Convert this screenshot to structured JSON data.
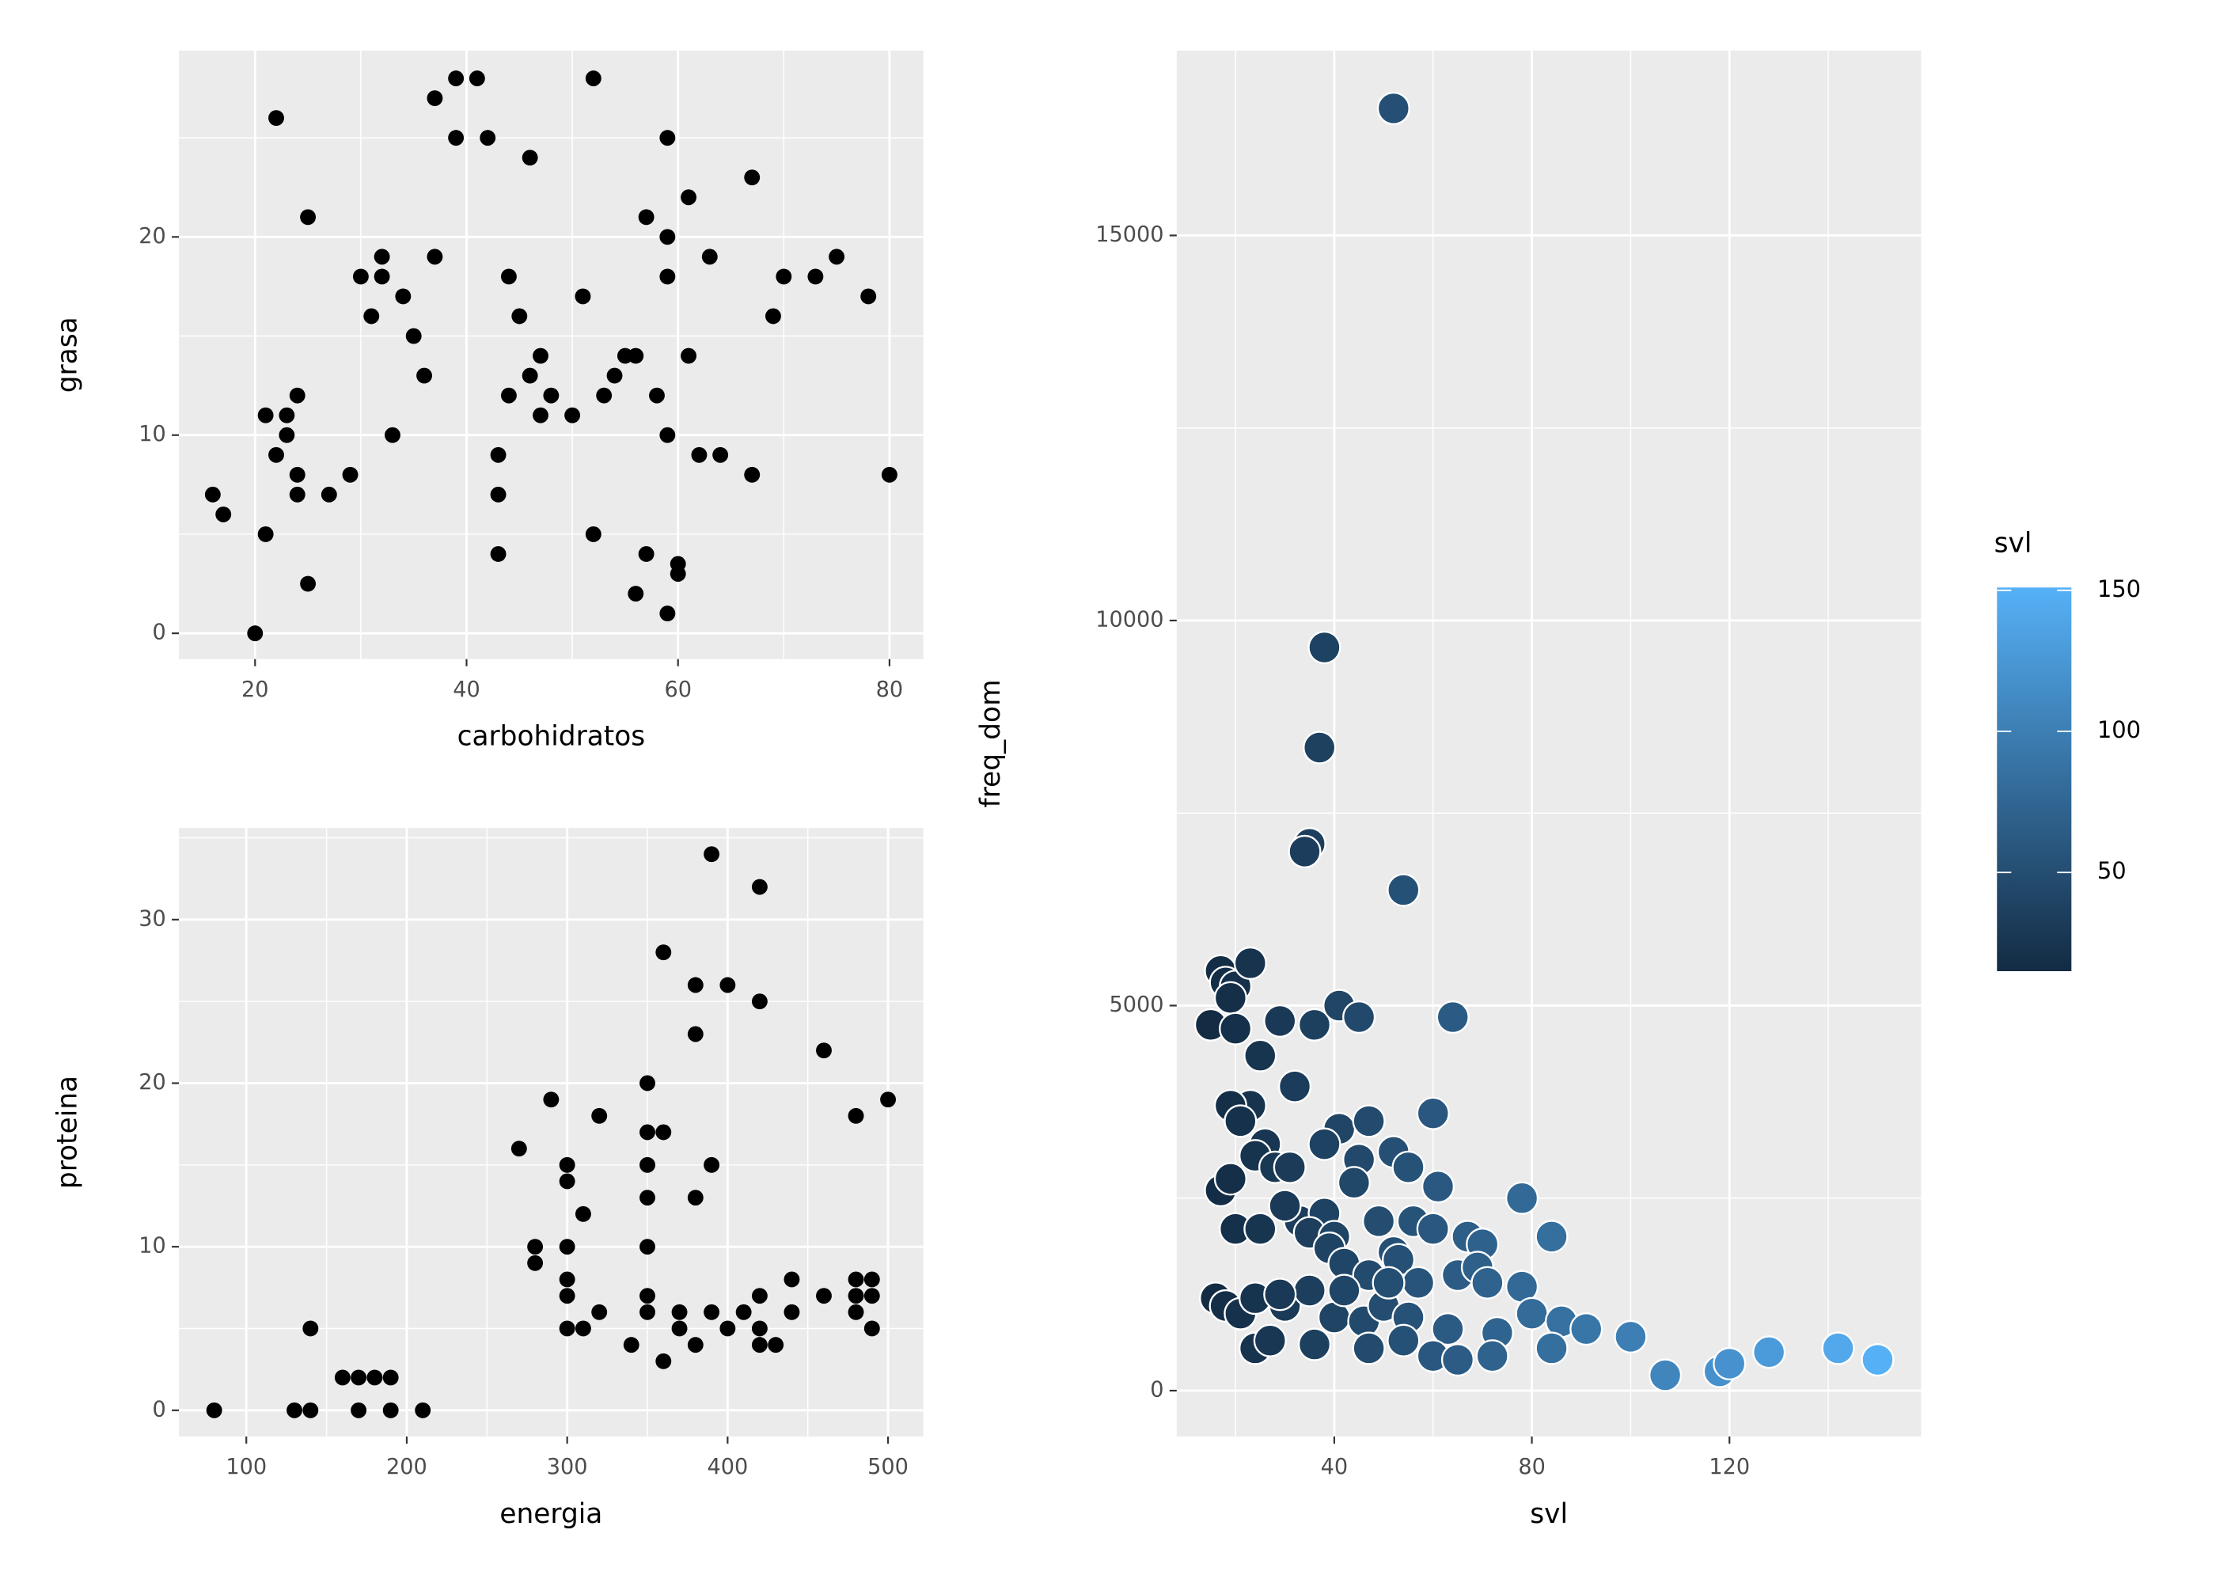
{
  "chart_data": [
    {
      "type": "scatter",
      "x_label": "carbohidratos",
      "y_label": "grasa",
      "color": "#000000",
      "xlim": [
        12.8,
        83.2
      ],
      "ylim": [
        -1.3,
        29.4
      ],
      "xticks": [
        20,
        40,
        60,
        80
      ],
      "yticks": [
        0,
        10,
        20
      ],
      "x": [
        16,
        17,
        20,
        21,
        21,
        22,
        22,
        23,
        23,
        24,
        24,
        24,
        25,
        25,
        27,
        29,
        30,
        31,
        32,
        32,
        33,
        34,
        35,
        36,
        37,
        37,
        39,
        39,
        41,
        42,
        43,
        43,
        43,
        44,
        44,
        45,
        46,
        46,
        47,
        47,
        48,
        50,
        51,
        52,
        52,
        53,
        54,
        55,
        56,
        56,
        57,
        57,
        58,
        59,
        59,
        59,
        59,
        59,
        60,
        60,
        61,
        61,
        62,
        63,
        64,
        67,
        67,
        69,
        70,
        73,
        75,
        78,
        80
      ],
      "y": [
        7,
        6,
        0,
        11,
        5,
        26,
        9,
        11,
        10,
        12,
        8,
        7,
        21,
        2.5,
        7,
        8,
        18,
        16,
        19,
        18,
        10,
        17,
        15,
        13,
        27,
        19,
        28,
        25,
        28,
        25,
        9,
        7,
        4,
        18,
        12,
        16,
        24,
        13,
        14,
        11,
        12,
        11,
        17,
        28,
        5,
        12,
        13,
        14,
        14,
        2,
        21,
        4,
        12,
        25,
        20,
        18,
        10,
        1,
        3.5,
        3,
        22,
        14,
        9,
        19,
        9,
        23,
        8,
        16,
        18,
        18,
        19,
        17,
        8
      ]
    },
    {
      "type": "scatter",
      "x_label": "energia",
      "y_label": "proteina",
      "color": "#000000",
      "xlim": [
        58,
        522
      ],
      "ylim": [
        -1.6,
        35.6
      ],
      "xticks": [
        100,
        200,
        300,
        400,
        500
      ],
      "yticks": [
        0,
        10,
        20,
        30
      ],
      "x": [
        80,
        130,
        140,
        140,
        160,
        170,
        170,
        180,
        190,
        190,
        210,
        270,
        280,
        280,
        290,
        300,
        300,
        300,
        300,
        300,
        300,
        310,
        310,
        320,
        320,
        340,
        350,
        350,
        350,
        350,
        350,
        350,
        350,
        360,
        360,
        360,
        370,
        370,
        380,
        380,
        380,
        380,
        390,
        390,
        390,
        400,
        400,
        410,
        420,
        420,
        420,
        420,
        420,
        430,
        440,
        440,
        460,
        460,
        480,
        480,
        480,
        480,
        490,
        490,
        490,
        500
      ],
      "y": [
        0,
        0,
        0,
        5,
        2,
        2,
        0,
        2,
        2,
        0,
        0,
        16,
        10,
        9,
        19,
        15,
        14,
        10,
        8,
        7,
        5,
        12,
        5,
        18,
        6,
        4,
        20,
        17,
        15,
        13,
        10,
        7,
        6,
        28,
        17,
        3,
        6,
        5,
        26,
        23,
        13,
        4,
        34,
        15,
        6,
        26,
        5,
        6,
        32,
        25,
        7,
        5,
        4,
        4,
        8,
        6,
        22,
        7,
        18,
        8,
        7,
        6,
        8,
        7,
        5,
        19
      ]
    },
    {
      "type": "bubble-color",
      "x_label": "svl",
      "y_label": "freq_dom",
      "xlim": [
        8.1,
        158.8
      ],
      "ylim": [
        -595,
        17400
      ],
      "xticks": [
        40,
        80,
        120
      ],
      "yticks": [
        0,
        5000,
        10000,
        15000
      ],
      "legend_title": "svl",
      "color_lim": [
        15,
        151
      ],
      "colors": [
        "#132B43",
        "#56B1F7"
      ],
      "colorbar_ticks": [
        50,
        100,
        150
      ],
      "x": [
        52,
        38,
        37,
        35,
        34,
        54,
        17,
        18,
        20,
        23,
        19,
        15,
        20,
        29,
        36,
        41,
        45,
        64,
        25,
        23,
        19,
        21,
        32,
        60,
        41,
        47,
        26,
        38,
        52,
        17,
        19,
        24,
        28,
        31,
        45,
        55,
        61,
        78,
        84,
        20,
        25,
        33,
        38,
        44,
        49,
        56,
        60,
        67,
        70,
        30,
        35,
        40,
        52,
        39,
        42,
        47,
        53,
        57,
        65,
        69,
        71,
        78,
        16,
        18,
        21,
        24,
        30,
        35,
        40,
        46,
        50,
        55,
        63,
        73,
        80,
        86,
        91,
        100,
        107,
        118,
        120,
        128,
        142,
        150,
        24,
        27,
        36,
        47,
        54,
        60,
        65,
        72,
        84,
        29,
        42,
        51
      ],
      "y": [
        16650,
        9650,
        8350,
        7100,
        7000,
        6500,
        5450,
        5300,
        5250,
        5550,
        5100,
        4750,
        4700,
        4800,
        4750,
        5000,
        4850,
        4850,
        4350,
        3700,
        3700,
        3500,
        3950,
        3600,
        3400,
        3500,
        3200,
        3200,
        3100,
        2600,
        2750,
        3050,
        2900,
        2900,
        3000,
        2900,
        2650,
        2500,
        2000,
        2100,
        2100,
        2200,
        2300,
        2700,
        2200,
        2200,
        2100,
        2000,
        1900,
        2400,
        2050,
        2000,
        1800,
        1850,
        1650,
        1500,
        1700,
        1400,
        1500,
        1600,
        1400,
        1350,
        1200,
        1100,
        1000,
        1200,
        1100,
        1300,
        950,
        900,
        1100,
        950,
        800,
        750,
        1000,
        900,
        800,
        700,
        200,
        250,
        350,
        500,
        550,
        400,
        550,
        650,
        600,
        550,
        650,
        450,
        400,
        450,
        550,
        1250,
        1300,
        1400
      ]
    }
  ]
}
